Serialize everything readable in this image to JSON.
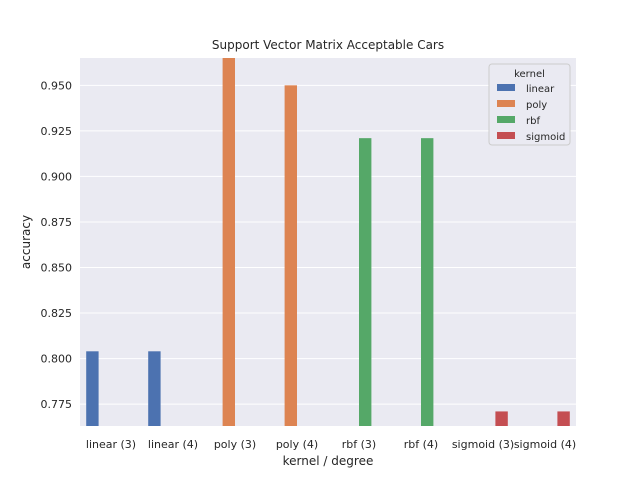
{
  "chart_data": {
    "type": "bar",
    "title": "Support Vector Matrix Acceptable Cars",
    "xlabel": "kernel / degree",
    "ylabel": "accuracy",
    "categories": [
      "linear (3)",
      "linear (4)",
      "poly (3)",
      "poly (4)",
      "rbf (3)",
      "rbf (4)",
      "sigmoid (3)",
      "sigmoid (4)"
    ],
    "ylim": [
      0.763,
      0.965
    ],
    "yticks": [
      0.775,
      0.8,
      0.825,
      0.85,
      0.875,
      0.9,
      0.925,
      0.95
    ],
    "ytick_labels": [
      "0.775",
      "0.800",
      "0.825",
      "0.850",
      "0.875",
      "0.900",
      "0.925",
      "0.950"
    ],
    "grid": true,
    "legend": {
      "title": "kernel",
      "placement": "top-right"
    },
    "series": [
      {
        "name": "linear",
        "color": "#4c72b0",
        "values": [
          0.804,
          0.804,
          null,
          null,
          null,
          null,
          null,
          null
        ]
      },
      {
        "name": "poly",
        "color": "#dd8452",
        "values": [
          null,
          null,
          0.965,
          0.95,
          null,
          null,
          null,
          null
        ]
      },
      {
        "name": "rbf",
        "color": "#55a868",
        "values": [
          null,
          null,
          null,
          null,
          0.921,
          0.921,
          null,
          null
        ]
      },
      {
        "name": "sigmoid",
        "color": "#c44e52",
        "values": [
          null,
          null,
          null,
          null,
          null,
          null,
          0.771,
          0.771
        ]
      }
    ],
    "colors": {
      "plot_background": "#eaeaf2",
      "grid": "#ffffff",
      "text": "#262626"
    }
  }
}
